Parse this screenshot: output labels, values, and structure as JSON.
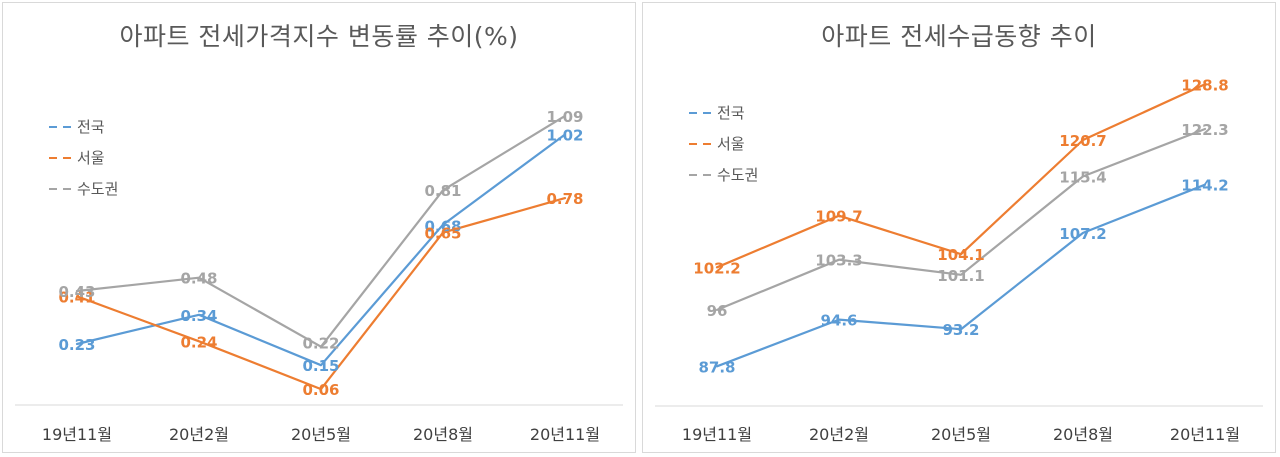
{
  "chart_data": [
    {
      "type": "line",
      "title": "아파트 전세가격지수 변동률 추이(%)",
      "categories": [
        "19년11월",
        "20년2월",
        "20년5월",
        "20년8월",
        "20년11월"
      ],
      "series": [
        {
          "name": "전국",
          "color": "#5b9bd5",
          "values": [
            0.23,
            0.34,
            0.15,
            0.68,
            1.02
          ]
        },
        {
          "name": "서울",
          "color": "#ed7d31",
          "values": [
            0.41,
            0.24,
            0.06,
            0.65,
            0.78
          ]
        },
        {
          "name": "수도권",
          "color": "#a5a5a5",
          "values": [
            0.43,
            0.48,
            0.22,
            0.81,
            1.09
          ]
        }
      ],
      "ylim": [
        0,
        1.15
      ],
      "grid": false,
      "legend_position": "left",
      "labels": [
        [
          "0.23",
          "0.34",
          "0.15",
          "0.68",
          "1.02"
        ],
        [
          "0.41",
          "0.24",
          "0.06",
          "0.65",
          "0.78"
        ],
        [
          "0.43",
          "0.48",
          "0.22",
          "0.81",
          "1.09"
        ]
      ]
    },
    {
      "type": "line",
      "title": "아파트 전세수급동향 추이",
      "categories": [
        "19년11월",
        "20년2월",
        "20년5월",
        "20년8월",
        "20년11월"
      ],
      "series": [
        {
          "name": "전국",
          "color": "#5b9bd5",
          "values": [
            87.8,
            94.6,
            93.2,
            107.2,
            114.2
          ]
        },
        {
          "name": "서울",
          "color": "#ed7d31",
          "values": [
            102.2,
            109.7,
            104.1,
            120.7,
            128.8
          ]
        },
        {
          "name": "수도권",
          "color": "#a5a5a5",
          "values": [
            96,
            103.3,
            101.1,
            115.4,
            122.3
          ]
        }
      ],
      "ylim": [
        80,
        130
      ],
      "grid": false,
      "legend_position": "left",
      "labels": [
        [
          "87.8",
          "94.6",
          "93.2",
          "107.2",
          "114.2"
        ],
        [
          "102.2",
          "109.7",
          "104.1",
          "120.7",
          "128.8"
        ],
        [
          "96",
          "103.3",
          "101.1",
          "115.4",
          "122.3"
        ]
      ]
    }
  ]
}
